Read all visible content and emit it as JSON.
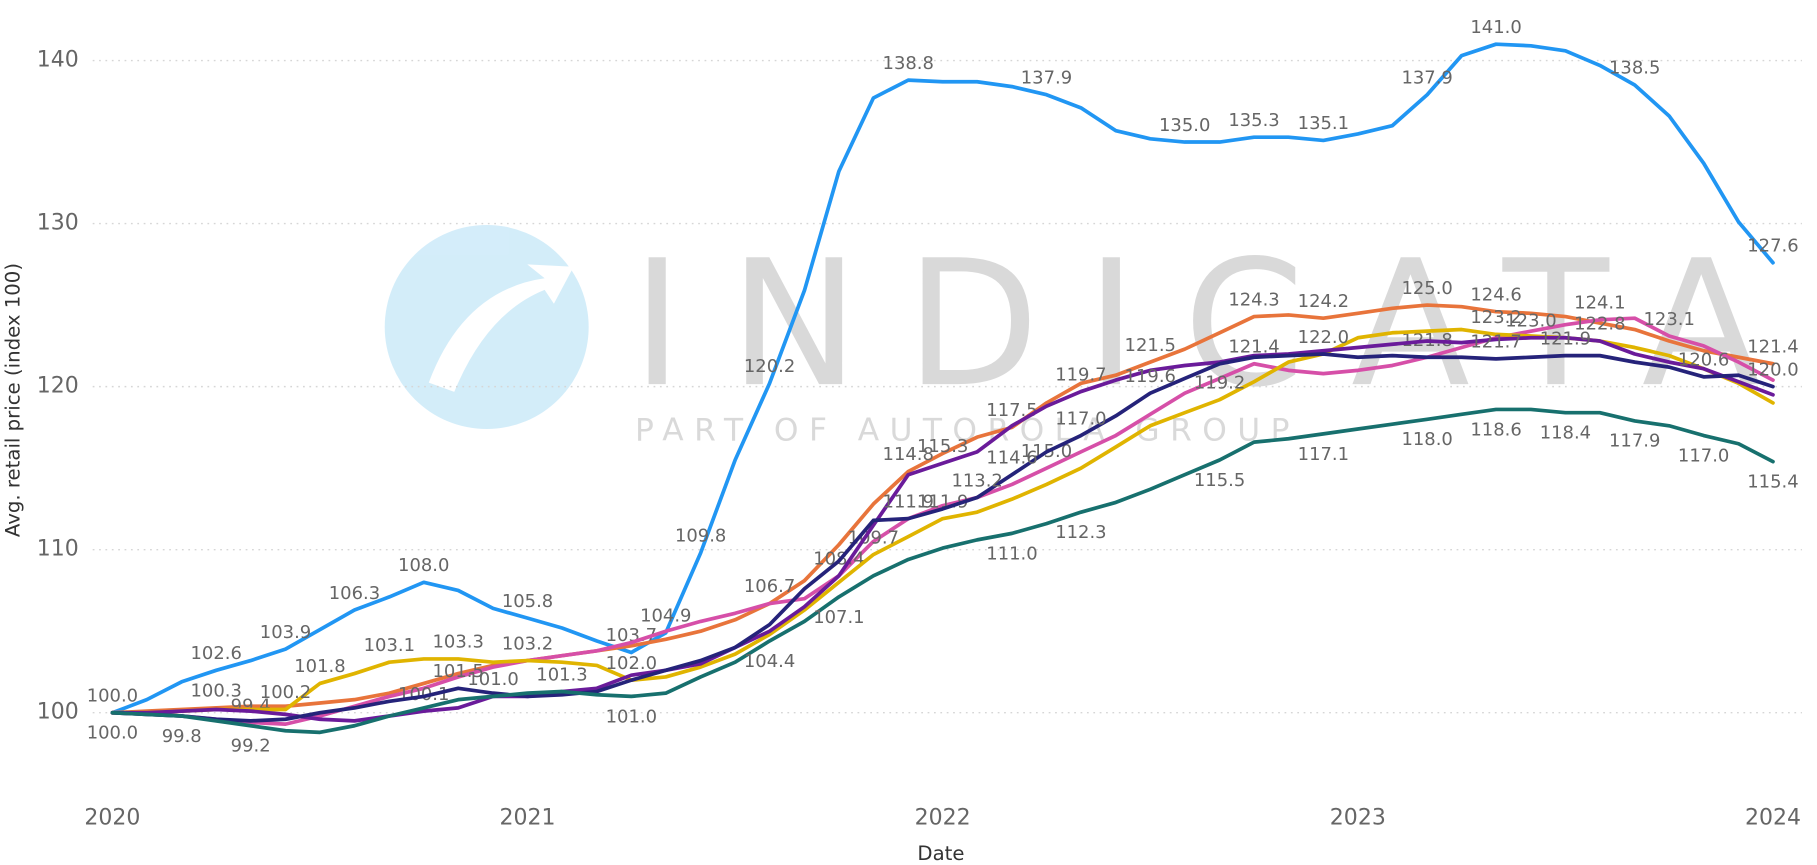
{
  "chart_data": {
    "type": "line",
    "x_label": "Date",
    "y_label": "Avg. retail price (index 100)",
    "watermark": {
      "text": "INDICATA",
      "subtext": "PART OF AUTOROLA GROUP"
    },
    "xlim": [
      2020,
      2024
    ],
    "xticks": [
      2020,
      2021,
      2022,
      2023,
      2024
    ],
    "ylim": [
      95,
      143
    ],
    "yticks": [
      100,
      110,
      120,
      130,
      140
    ],
    "grid": true,
    "x": [
      2020,
      2020.083,
      2020.167,
      2020.25,
      2020.333,
      2020.417,
      2020.5,
      2020.583,
      2020.667,
      2020.75,
      2020.833,
      2020.917,
      2021,
      2021.083,
      2021.167,
      2021.25,
      2021.333,
      2021.417,
      2021.5,
      2021.583,
      2021.667,
      2021.75,
      2021.833,
      2021.917,
      2022,
      2022.083,
      2022.167,
      2022.25,
      2022.333,
      2022.417,
      2022.5,
      2022.583,
      2022.667,
      2022.75,
      2022.833,
      2022.917,
      2023,
      2023.083,
      2023.167,
      2023.25,
      2023.333,
      2023.417,
      2023.5,
      2023.583,
      2023.667,
      2023.75,
      2023.833,
      2023.917,
      2024
    ],
    "series": [
      {
        "color": "#2196f3",
        "values": [
          100.0,
          100.8,
          101.9,
          102.6,
          103.2,
          103.9,
          105.1,
          106.3,
          107.1,
          108.0,
          107.5,
          106.4,
          105.8,
          105.2,
          104.4,
          103.7,
          104.9,
          109.8,
          115.5,
          120.2,
          125.9,
          133.2,
          137.7,
          138.8,
          138.7,
          138.7,
          138.4,
          137.9,
          137.1,
          135.7,
          135.2,
          135.0,
          135.0,
          135.3,
          135.3,
          135.1,
          135.5,
          136.0,
          137.9,
          140.3,
          141.0,
          140.9,
          140.6,
          139.7,
          138.5,
          136.6,
          133.7,
          130.1,
          127.6
        ],
        "value_labels": [
          "100.0",
          null,
          null,
          "102.6",
          null,
          "103.9",
          null,
          "106.3",
          null,
          "108.0",
          null,
          null,
          "105.8",
          null,
          null,
          "103.7",
          "104.9",
          "109.8",
          null,
          "120.2",
          null,
          null,
          null,
          "138.8",
          null,
          null,
          null,
          "137.9",
          null,
          null,
          null,
          "135.0",
          null,
          "135.3",
          null,
          "135.1",
          null,
          null,
          "137.9",
          null,
          "141.0",
          null,
          null,
          null,
          "138.5",
          null,
          null,
          null,
          "127.6"
        ]
      },
      {
        "color": "#e8743b",
        "values": [
          100.0,
          100.1,
          100.2,
          100.3,
          100.4,
          100.4,
          100.6,
          100.8,
          101.2,
          101.8,
          102.4,
          102.9,
          103.2,
          103.5,
          103.8,
          104.1,
          104.5,
          105.0,
          105.7,
          106.7,
          108.1,
          110.3,
          112.8,
          114.8,
          115.9,
          116.9,
          117.5,
          119.0,
          120.2,
          120.7,
          121.5,
          122.3,
          123.3,
          124.3,
          124.4,
          124.2,
          124.5,
          124.8,
          125.0,
          124.9,
          124.6,
          124.5,
          124.3,
          123.9,
          123.5,
          122.8,
          122.2,
          121.8,
          121.4
        ],
        "value_labels": [
          null,
          null,
          null,
          "100.3",
          null,
          null,
          null,
          null,
          null,
          null,
          null,
          null,
          null,
          null,
          null,
          null,
          null,
          null,
          null,
          "106.7",
          null,
          null,
          null,
          "114.8",
          null,
          null,
          "117.5",
          null,
          null,
          null,
          "121.5",
          null,
          null,
          "124.3",
          null,
          "124.2",
          null,
          null,
          "125.0",
          null,
          "124.6",
          null,
          null,
          null,
          null,
          null,
          null,
          null,
          "121.4"
        ]
      },
      {
        "color": "#d64fa8",
        "values": [
          100.0,
          99.9,
          99.8,
          99.6,
          99.4,
          99.3,
          99.8,
          100.4,
          101.0,
          101.5,
          102.2,
          102.8,
          103.2,
          103.5,
          103.8,
          104.3,
          105.0,
          105.6,
          106.1,
          106.7,
          107.0,
          108.4,
          110.5,
          111.9,
          112.7,
          113.2,
          114.0,
          115.0,
          116.0,
          117.0,
          118.3,
          119.6,
          120.5,
          121.4,
          121.0,
          120.8,
          121.0,
          121.3,
          121.8,
          122.4,
          123.0,
          123.4,
          123.8,
          124.1,
          124.2,
          123.1,
          122.5,
          121.5,
          120.4
        ],
        "value_labels": [
          null,
          null,
          null,
          null,
          "99.4",
          null,
          null,
          null,
          null,
          null,
          null,
          null,
          null,
          null,
          null,
          null,
          null,
          null,
          null,
          null,
          null,
          "108.4",
          null,
          null,
          null,
          null,
          null,
          "115.0",
          null,
          null,
          null,
          null,
          null,
          "121.4",
          null,
          null,
          null,
          null,
          "121.8",
          null,
          null,
          null,
          null,
          "124.1",
          null,
          "123.1",
          null,
          null,
          null
        ]
      },
      {
        "color": "#e0b400",
        "values": [
          100.0,
          100.0,
          100.1,
          100.2,
          100.2,
          100.2,
          101.8,
          102.4,
          103.1,
          103.3,
          103.3,
          103.1,
          103.2,
          103.1,
          102.9,
          102.0,
          102.2,
          102.8,
          103.6,
          104.8,
          106.3,
          108.0,
          109.7,
          110.8,
          111.9,
          112.3,
          113.1,
          114.0,
          115.0,
          116.3,
          117.6,
          118.4,
          119.2,
          120.3,
          121.5,
          122.0,
          123.0,
          123.3,
          123.4,
          123.5,
          123.2,
          123.1,
          123.0,
          122.8,
          122.4,
          121.9,
          121.1,
          120.2,
          119.0
        ],
        "value_labels": [
          null,
          null,
          null,
          null,
          null,
          "100.2",
          "101.8",
          null,
          "103.1",
          null,
          "103.3",
          null,
          "103.2",
          null,
          null,
          "102.0",
          null,
          null,
          null,
          null,
          null,
          null,
          "109.7",
          null,
          "111.9",
          null,
          null,
          null,
          null,
          null,
          null,
          null,
          "119.2",
          null,
          null,
          "122.0",
          null,
          null,
          null,
          null,
          "123.2",
          null,
          null,
          "122.8",
          null,
          null,
          null,
          null,
          null
        ]
      },
      {
        "color": "#6a1b9a",
        "values": [
          100.0,
          100.0,
          100.1,
          100.2,
          100.1,
          99.9,
          99.6,
          99.5,
          99.8,
          100.1,
          100.3,
          101.0,
          101.0,
          101.3,
          101.5,
          102.3,
          102.6,
          103.0,
          104.0,
          105.0,
          106.5,
          108.4,
          111.5,
          114.6,
          115.3,
          116.0,
          117.6,
          118.8,
          119.7,
          120.4,
          121.0,
          121.3,
          121.5,
          121.9,
          122.0,
          122.2,
          122.4,
          122.6,
          122.8,
          122.7,
          122.9,
          123.0,
          123.0,
          122.8,
          122.0,
          121.5,
          121.1,
          120.3,
          119.5
        ],
        "value_labels": [
          null,
          null,
          null,
          null,
          null,
          null,
          null,
          null,
          null,
          "100.1",
          null,
          "101.0",
          null,
          "101.3",
          null,
          null,
          null,
          null,
          null,
          null,
          null,
          null,
          null,
          null,
          "115.3",
          null,
          null,
          null,
          "119.7",
          null,
          null,
          null,
          null,
          null,
          null,
          null,
          null,
          null,
          null,
          null,
          null,
          "123.0",
          null,
          null,
          null,
          null,
          null,
          null,
          null
        ]
      },
      {
        "color": "#25237a",
        "values": [
          100.0,
          99.9,
          99.8,
          99.6,
          99.5,
          99.6,
          100.0,
          100.3,
          100.7,
          101.0,
          101.5,
          101.2,
          101.0,
          101.1,
          101.3,
          102.0,
          102.6,
          103.2,
          104.0,
          105.4,
          107.6,
          109.3,
          111.8,
          111.9,
          112.5,
          113.2,
          114.6,
          116.0,
          117.0,
          118.2,
          119.6,
          120.5,
          121.4,
          121.8,
          121.9,
          122.0,
          121.8,
          121.9,
          121.8,
          121.8,
          121.7,
          121.8,
          121.9,
          121.9,
          121.5,
          121.2,
          120.6,
          120.7,
          120.0
        ],
        "value_labels": [
          null,
          null,
          null,
          null,
          null,
          null,
          null,
          null,
          null,
          null,
          "101.5",
          null,
          null,
          null,
          null,
          null,
          null,
          null,
          null,
          null,
          null,
          null,
          null,
          "111.9",
          null,
          "113.2",
          "114.6",
          null,
          "117.0",
          null,
          "119.6",
          null,
          null,
          null,
          null,
          null,
          null,
          null,
          null,
          null,
          "121.7",
          null,
          "121.9",
          null,
          null,
          null,
          "120.6",
          null,
          "120.0"
        ]
      },
      {
        "color": "#17706e",
        "values": [
          100.0,
          99.9,
          99.8,
          99.5,
          99.2,
          98.9,
          98.8,
          99.2,
          99.8,
          100.3,
          100.8,
          101.0,
          101.2,
          101.3,
          101.1,
          101.0,
          101.2,
          102.2,
          103.1,
          104.4,
          105.6,
          107.1,
          108.4,
          109.4,
          110.1,
          110.6,
          111.0,
          111.6,
          112.3,
          112.9,
          113.7,
          114.6,
          115.5,
          116.6,
          116.8,
          117.1,
          117.4,
          117.7,
          118.0,
          118.3,
          118.6,
          118.6,
          118.4,
          118.4,
          117.9,
          117.6,
          117.0,
          116.5,
          115.4
        ],
        "value_labels": [
          "100.0",
          null,
          "99.8",
          null,
          "99.2",
          null,
          null,
          null,
          null,
          null,
          null,
          null,
          null,
          null,
          null,
          "101.0",
          null,
          null,
          null,
          "104.4",
          null,
          "107.1",
          null,
          null,
          null,
          null,
          "111.0",
          null,
          "112.3",
          null,
          null,
          null,
          "115.5",
          null,
          null,
          "117.1",
          null,
          null,
          "118.0",
          null,
          "118.6",
          null,
          "118.4",
          null,
          "117.9",
          null,
          "117.0",
          null,
          "115.4"
        ]
      }
    ]
  }
}
